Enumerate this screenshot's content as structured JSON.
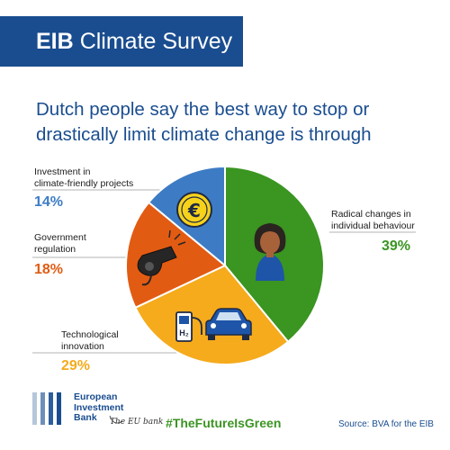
{
  "banner": {
    "title_bold": "EIB",
    "title_rest": "Climate Survey"
  },
  "headline": "Dutch people say the best way to stop or drastically limit climate change is through",
  "chart_data": {
    "type": "pie",
    "title": "",
    "slices": [
      {
        "label": "Radical changes in individual behaviour",
        "value": 39,
        "display": "39%",
        "color": "#3a9521"
      },
      {
        "label": "Technological innovation",
        "value": 29,
        "display": "29%",
        "color": "#f5ab1c"
      },
      {
        "label": "Government regulation",
        "value": 18,
        "display": "18%",
        "color": "#e25b13"
      },
      {
        "label": "Investment in climate-friendly projects",
        "value": 14,
        "display": "14%",
        "color": "#3d7cc4"
      }
    ]
  },
  "labels": {
    "radical_line1": "Radical changes in",
    "radical_line2": "individual behaviour",
    "tech_line1": "Technological",
    "tech_line2": "innovation",
    "gov_line1": "Government",
    "gov_line2": "regulation",
    "invest_line1": "Investment in",
    "invest_line2": "climate-friendly projects"
  },
  "icons": [
    "euro-icon",
    "person-icon",
    "whistle-icon",
    "hydrogen-pump-icon",
    "car-icon"
  ],
  "footer": {
    "logo_line1": "European",
    "logo_line2": "Investment",
    "logo_line3": "Bank",
    "logo_sign": "The EU bank",
    "hashtag": "#TheFutureIsGreen",
    "source": "Source: BVA for the EIB"
  }
}
